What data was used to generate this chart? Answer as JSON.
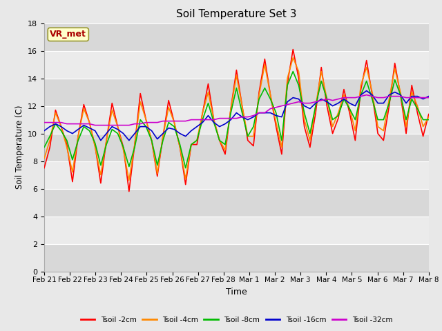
{
  "title": "Soil Temperature Set 3",
  "xlabel": "Time",
  "ylabel": "Soil Temperature (C)",
  "ylim": [
    0,
    18
  ],
  "yticks": [
    0,
    2,
    4,
    6,
    8,
    10,
    12,
    14,
    16,
    18
  ],
  "xtick_labels": [
    "Feb 21",
    "Feb 22",
    "Feb 23",
    "Feb 24",
    "Feb 25",
    "Feb 26",
    "Feb 27",
    "Feb 28",
    "Mar 1",
    "Mar 2",
    "Mar 3",
    "Mar 4",
    "Mar 5",
    "Mar 6",
    "Mar 7",
    "Mar 8"
  ],
  "annotation_text": "VR_met",
  "annotation_color": "#aa0000",
  "annotation_bg": "#ffffcc",
  "annotation_border": "#999933",
  "series_colors": [
    "#ff0000",
    "#ff8800",
    "#00bb00",
    "#0000cc",
    "#cc00cc"
  ],
  "series_labels": [
    "Tsoil -2cm",
    "Tsoil -4cm",
    "Tsoil -8cm",
    "Tsoil -16cm",
    "Tsoil -32cm"
  ],
  "bg_band_dark": "#d8d8d8",
  "bg_band_light": "#ebebeb",
  "grid_color": "#ffffff",
  "tsoil_2cm": [
    7.5,
    9.0,
    11.7,
    10.5,
    9.2,
    6.5,
    9.8,
    12.1,
    10.8,
    9.1,
    6.4,
    9.5,
    12.2,
    10.5,
    9.0,
    5.8,
    9.2,
    12.9,
    11.0,
    9.5,
    6.9,
    9.8,
    12.4,
    10.8,
    9.0,
    6.3,
    9.2,
    9.2,
    11.5,
    13.6,
    11.0,
    9.5,
    8.5,
    11.8,
    14.6,
    12.0,
    9.5,
    9.1,
    13.0,
    15.4,
    12.8,
    10.5,
    8.5,
    13.6,
    16.1,
    14.0,
    10.5,
    9.0,
    11.5,
    14.8,
    12.0,
    10.0,
    11.1,
    13.2,
    11.5,
    9.5,
    13.2,
    15.3,
    12.8,
    10.0,
    9.5,
    12.0,
    15.1,
    12.8,
    10.0,
    13.5,
    11.5,
    9.8,
    11.4
  ],
  "tsoil_4cm": [
    8.2,
    9.5,
    11.5,
    10.5,
    9.0,
    7.2,
    9.8,
    11.8,
    10.8,
    9.0,
    7.0,
    9.5,
    11.7,
    10.5,
    8.8,
    6.6,
    9.2,
    12.3,
    11.0,
    9.5,
    7.1,
    9.8,
    11.9,
    10.8,
    9.0,
    6.7,
    9.2,
    9.5,
    11.5,
    13.0,
    11.0,
    9.5,
    8.8,
    11.8,
    14.2,
    12.0,
    9.8,
    9.8,
    12.8,
    15.0,
    12.8,
    10.8,
    9.0,
    14.0,
    15.5,
    14.5,
    11.0,
    9.5,
    12.0,
    14.5,
    12.5,
    10.5,
    11.5,
    12.8,
    11.8,
    10.2,
    13.5,
    14.8,
    13.0,
    10.5,
    10.2,
    12.5,
    14.7,
    13.0,
    10.5,
    13.0,
    12.0,
    10.5,
    11.2
  ],
  "tsoil_8cm": [
    9.0,
    9.8,
    10.7,
    10.2,
    9.5,
    8.1,
    9.5,
    10.5,
    10.2,
    9.3,
    7.7,
    9.2,
    10.3,
    10.0,
    9.0,
    7.6,
    9.0,
    11.0,
    10.5,
    9.5,
    7.7,
    9.5,
    10.8,
    10.5,
    9.2,
    7.5,
    9.2,
    9.5,
    11.0,
    12.2,
    10.8,
    9.5,
    9.2,
    11.5,
    13.3,
    11.5,
    9.8,
    10.5,
    12.5,
    13.3,
    12.5,
    11.5,
    9.5,
    13.5,
    14.5,
    13.5,
    11.5,
    10.0,
    12.0,
    13.8,
    12.5,
    11.0,
    11.3,
    12.5,
    11.8,
    11.0,
    12.8,
    13.8,
    12.5,
    11.0,
    11.0,
    12.2,
    13.9,
    12.8,
    11.0,
    12.5,
    11.8,
    11.0,
    11.0
  ],
  "tsoil_16cm": [
    10.2,
    10.5,
    10.7,
    10.5,
    10.2,
    10.0,
    10.3,
    10.6,
    10.4,
    10.2,
    9.5,
    10.0,
    10.5,
    10.3,
    10.0,
    9.5,
    10.0,
    10.5,
    10.5,
    10.2,
    9.6,
    10.0,
    10.4,
    10.3,
    10.0,
    9.8,
    10.2,
    10.5,
    10.8,
    11.3,
    10.8,
    10.5,
    10.7,
    11.0,
    11.5,
    11.2,
    11.0,
    11.2,
    11.5,
    11.5,
    11.5,
    11.3,
    11.2,
    12.3,
    12.6,
    12.5,
    12.0,
    11.8,
    12.2,
    12.5,
    12.3,
    12.0,
    12.2,
    12.5,
    12.2,
    12.0,
    12.8,
    13.1,
    12.8,
    12.2,
    12.2,
    12.8,
    13.0,
    12.8,
    12.2,
    12.7,
    12.7,
    12.5,
    12.7
  ],
  "tsoil_32cm": [
    10.8,
    10.8,
    10.8,
    10.8,
    10.7,
    10.7,
    10.7,
    10.7,
    10.7,
    10.6,
    10.6,
    10.6,
    10.6,
    10.6,
    10.6,
    10.6,
    10.7,
    10.7,
    10.8,
    10.8,
    10.8,
    10.9,
    10.9,
    10.9,
    10.9,
    10.9,
    11.0,
    11.0,
    11.0,
    11.0,
    11.0,
    11.1,
    11.1,
    11.1,
    11.1,
    11.2,
    11.2,
    11.3,
    11.5,
    11.5,
    11.8,
    11.9,
    12.0,
    12.1,
    12.2,
    12.3,
    12.2,
    12.2,
    12.3,
    12.4,
    12.5,
    12.4,
    12.5,
    12.6,
    12.6,
    12.6,
    12.7,
    12.8,
    12.7,
    12.6,
    12.6,
    12.7,
    12.7,
    12.7,
    12.6,
    12.6,
    12.6,
    12.6,
    12.6
  ]
}
